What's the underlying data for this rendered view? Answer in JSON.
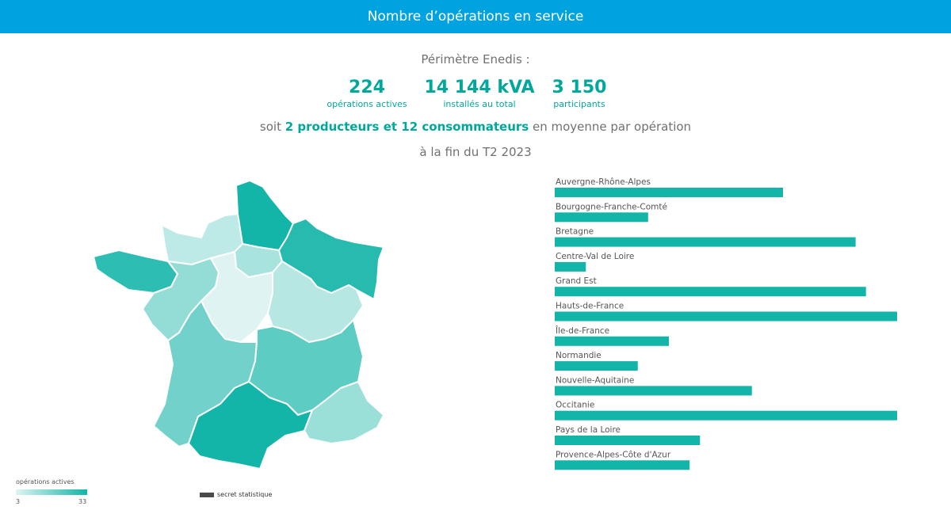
{
  "header": {
    "title": "Nombre d’opérations en service"
  },
  "summary": {
    "perimetre": "Périmètre Enedis :",
    "kpis": [
      {
        "value": "224",
        "label": "opérations actives"
      },
      {
        "value": "14 144 kVA",
        "label": "installés au total"
      },
      {
        "value": "3 150",
        "label": "participants"
      }
    ],
    "line2_prefix": "soit ",
    "line2_bold": "2 producteurs et 12 consommateurs",
    "line2_suffix": " en moyenne par opération",
    "line3": "à la fin du T2 2023"
  },
  "legend": {
    "title": "opérations actives",
    "min": "3",
    "max": "33",
    "color_min": "#dff4f2",
    "color_max": "#12b5a8",
    "secret_label": "secret statistique",
    "secret_color": "#4a4a4a"
  },
  "chart_data": [
    {
      "type": "choropleth",
      "value_label": "opérations actives",
      "range": [
        3,
        33
      ],
      "regions": [
        {
          "name": "Auvergne-Rhône-Alpes",
          "value": 22
        },
        {
          "name": "Bourgogne-Franche-Comté",
          "value": 9
        },
        {
          "name": "Bretagne",
          "value": 29
        },
        {
          "name": "Centre-Val de Loire",
          "value": 3
        },
        {
          "name": "Grand Est",
          "value": 30
        },
        {
          "name": "Hauts-de-France",
          "value": 33
        },
        {
          "name": "Île-de-France",
          "value": 11
        },
        {
          "name": "Normandie",
          "value": 8
        },
        {
          "name": "Nouvelle-Aquitaine",
          "value": 19
        },
        {
          "name": "Occitanie",
          "value": 33
        },
        {
          "name": "Pays de la Loire",
          "value": 14
        },
        {
          "name": "Provence-Alpes-Côte d'Azur",
          "value": 13
        }
      ]
    },
    {
      "type": "bar",
      "orientation": "horizontal",
      "color": "#12b5a8",
      "categories": [
        "Auvergne-Rhône-Alpes",
        "Bourgogne-Franche-Comté",
        "Bretagne",
        "Centre-Val de Loire",
        "Grand Est",
        "Hauts-de-France",
        "Île-de-France",
        "Normandie",
        "Nouvelle-Aquitaine",
        "Occitanie",
        "Pays de la Loire",
        "Provence-Alpes-Côte d'Azur"
      ],
      "values": [
        22,
        9,
        29,
        3,
        30,
        33,
        11,
        8,
        19,
        33,
        14,
        13
      ],
      "xlim": [
        0,
        33
      ]
    }
  ]
}
